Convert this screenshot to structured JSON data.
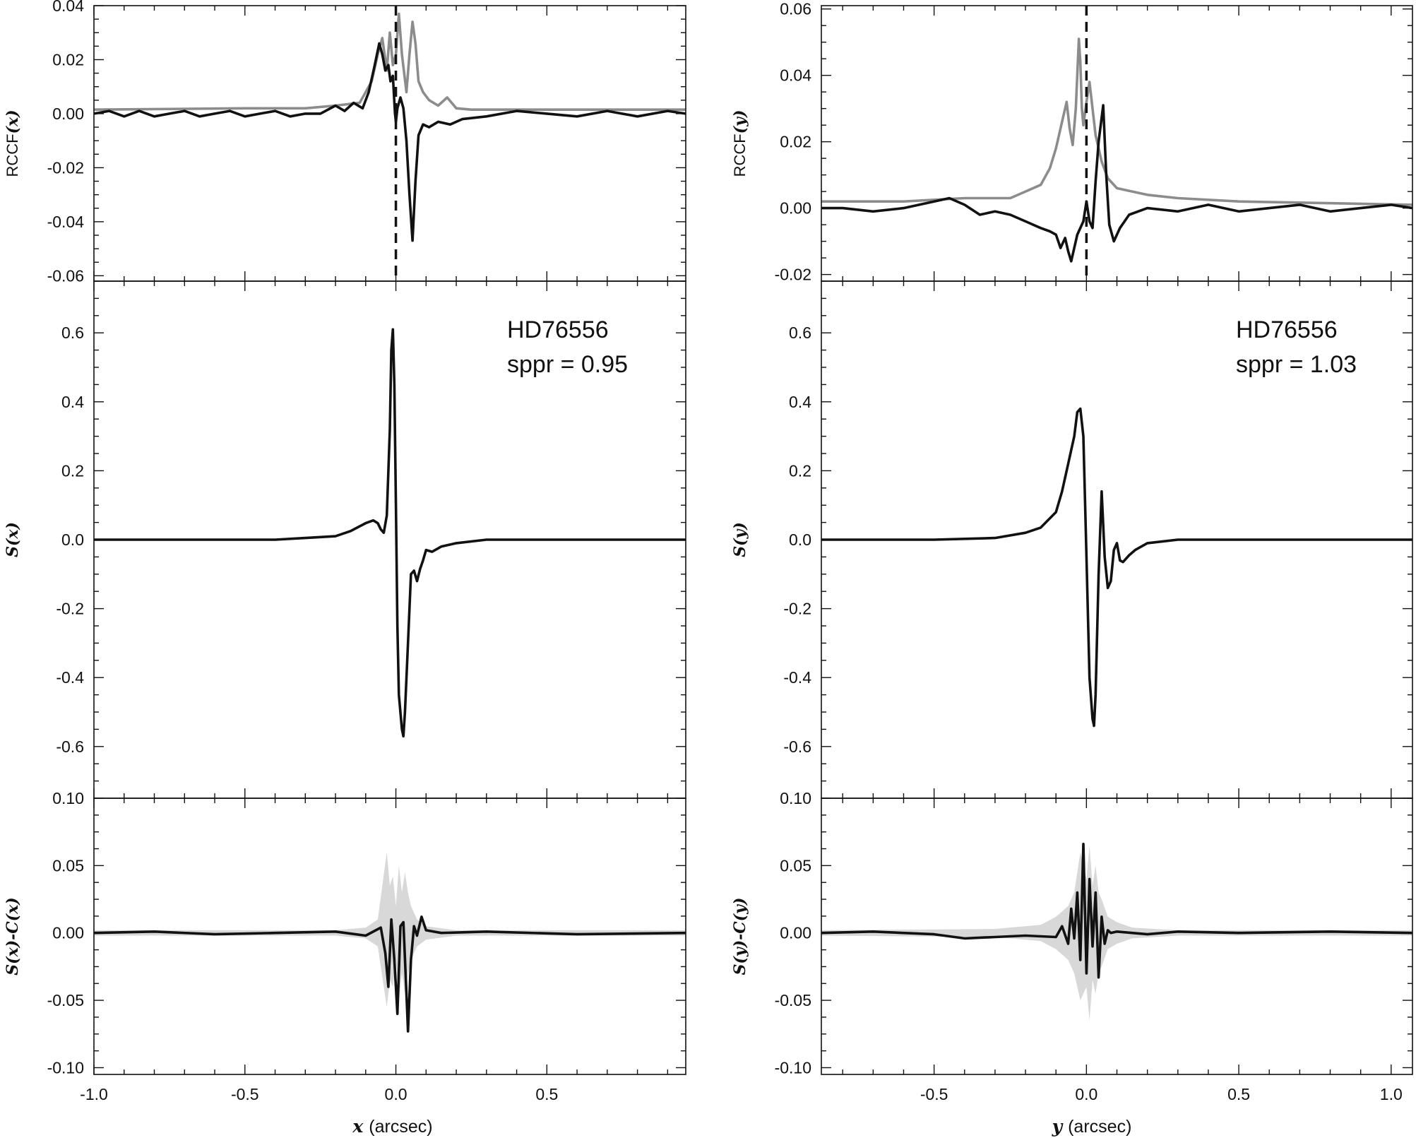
{
  "columns": [
    {
      "id": "x",
      "xrange": [
        -1.0,
        0.96
      ],
      "xticks": [
        "-1.0",
        "-0.5",
        "0.0",
        "0.5"
      ],
      "xtick_values": [
        -1.0,
        -0.5,
        0.0,
        0.5
      ],
      "xlabel_var": "x",
      "xlabel_unit": "(arcsec)",
      "annotation_name": "HD76556",
      "annotation_sppr": "sppr = 0.95"
    },
    {
      "id": "y",
      "xrange": [
        -0.87,
        1.07
      ],
      "xticks": [
        "-0.5",
        "0.0",
        "0.5",
        "1.0"
      ],
      "xtick_values": [
        -0.5,
        0.0,
        0.5,
        1.0
      ],
      "xlabel_var": "y",
      "xlabel_unit": "(arcsec)",
      "annotation_name": "HD76556",
      "annotation_sppr": "sppr = 1.03"
    }
  ],
  "chart_data": [
    {
      "type": "line",
      "panel": "top-left",
      "ylabel": "RCCF(x)",
      "ylim": [
        -0.062,
        0.04
      ],
      "yticks": [
        "-0.06",
        "-0.04",
        "-0.02",
        "0.00",
        "0.02",
        "0.04"
      ],
      "ytick_values": [
        -0.06,
        -0.04,
        -0.02,
        0.0,
        0.02,
        0.04
      ],
      "vline": 0.0,
      "series": [
        {
          "color": "#8c8c8c",
          "x": [
            -1.0,
            -0.5,
            -0.3,
            -0.2,
            -0.12,
            -0.1,
            -0.08,
            -0.06,
            -0.045,
            -0.03,
            -0.02,
            -0.01,
            0.0,
            0.01,
            0.02,
            0.035,
            0.045,
            0.055,
            0.065,
            0.075,
            0.09,
            0.11,
            0.14,
            0.17,
            0.2,
            0.25,
            0.5,
            0.96
          ],
          "y": [
            0.0015,
            0.002,
            0.002,
            0.003,
            0.004,
            0.008,
            0.012,
            0.022,
            0.028,
            0.016,
            0.03,
            0.018,
            0.022,
            0.037,
            0.022,
            0.008,
            0.022,
            0.034,
            0.026,
            0.012,
            0.008,
            0.005,
            0.003,
            0.006,
            0.002,
            0.0015,
            0.0015,
            0.0015
          ]
        },
        {
          "color": "#111111",
          "x": [
            -1.0,
            -0.95,
            -0.9,
            -0.85,
            -0.8,
            -0.75,
            -0.7,
            -0.65,
            -0.6,
            -0.55,
            -0.5,
            -0.45,
            -0.4,
            -0.35,
            -0.3,
            -0.25,
            -0.2,
            -0.17,
            -0.14,
            -0.11,
            -0.09,
            -0.07,
            -0.055,
            -0.045,
            -0.035,
            -0.025,
            -0.018,
            -0.01,
            -0.003,
            0.0,
            0.005,
            0.015,
            0.025,
            0.035,
            0.045,
            0.055,
            0.065,
            0.075,
            0.09,
            0.11,
            0.14,
            0.18,
            0.22,
            0.3,
            0.4,
            0.5,
            0.6,
            0.7,
            0.8,
            0.9,
            0.96
          ],
          "y": [
            0.0,
            0.001,
            -0.001,
            0.001,
            -0.001,
            0.0,
            0.001,
            -0.001,
            0.0,
            0.001,
            -0.001,
            0.0,
            0.001,
            -0.001,
            0.0,
            0.0,
            0.003,
            0.001,
            0.004,
            0.002,
            0.008,
            0.018,
            0.026,
            0.022,
            0.016,
            0.018,
            0.012,
            0.014,
            0.0,
            -0.003,
            0.002,
            0.006,
            0.002,
            -0.01,
            -0.03,
            -0.047,
            -0.025,
            -0.008,
            -0.004,
            -0.005,
            -0.003,
            -0.004,
            -0.002,
            -0.001,
            0.001,
            0.0,
            -0.001,
            0.001,
            -0.001,
            0.001,
            0.0
          ]
        }
      ]
    },
    {
      "type": "line",
      "panel": "middle-left",
      "ylabel": "S(x)",
      "ylim": [
        -0.75,
        0.75
      ],
      "yticks": [
        "-0.6",
        "-0.4",
        "-0.2",
        "0.0",
        "0.2",
        "0.4",
        "0.6"
      ],
      "ytick_values": [
        -0.6,
        -0.4,
        -0.2,
        0.0,
        0.2,
        0.4,
        0.6
      ],
      "series": [
        {
          "color": "#111111",
          "x": [
            -1.0,
            -0.6,
            -0.4,
            -0.3,
            -0.2,
            -0.15,
            -0.1,
            -0.075,
            -0.06,
            -0.05,
            -0.04,
            -0.03,
            -0.02,
            -0.015,
            -0.01,
            -0.005,
            0.0,
            0.005,
            0.01,
            0.02,
            0.025,
            0.03,
            0.04,
            0.05,
            0.06,
            0.07,
            0.08,
            0.09,
            0.1,
            0.12,
            0.15,
            0.2,
            0.3,
            0.5,
            0.96
          ],
          "y": [
            0.0,
            0.0,
            0.0,
            0.005,
            0.01,
            0.025,
            0.048,
            0.056,
            0.048,
            0.03,
            0.02,
            0.07,
            0.32,
            0.55,
            0.61,
            0.45,
            0.1,
            -0.25,
            -0.45,
            -0.55,
            -0.57,
            -0.5,
            -0.3,
            -0.1,
            -0.09,
            -0.12,
            -0.085,
            -0.06,
            -0.03,
            -0.035,
            -0.02,
            -0.01,
            0.0,
            0.0,
            0.0
          ]
        }
      ]
    },
    {
      "type": "area",
      "panel": "bottom-left",
      "ylabel": "S(x)-C(x)",
      "ylim": [
        -0.105,
        0.1
      ],
      "yticks": [
        "-0.10",
        "-0.05",
        "0.00",
        "0.05",
        "0.10"
      ],
      "ytick_values": [
        -0.1,
        -0.05,
        0.0,
        0.05,
        0.1
      ],
      "band": {
        "color": "#d8d8d8",
        "x": [
          -1.0,
          -0.2,
          -0.1,
          -0.06,
          -0.03,
          -0.02,
          -0.01,
          0.0,
          0.01,
          0.02,
          0.03,
          0.04,
          0.05,
          0.07,
          0.1,
          0.2,
          0.96
        ],
        "upper": [
          0.002,
          0.002,
          0.004,
          0.01,
          0.06,
          0.035,
          0.042,
          0.02,
          0.05,
          0.03,
          0.045,
          0.03,
          0.02,
          0.01,
          0.005,
          0.002,
          0.002
        ],
        "lower": [
          -0.002,
          -0.002,
          -0.004,
          -0.01,
          -0.055,
          -0.035,
          -0.04,
          -0.02,
          -0.05,
          -0.03,
          -0.045,
          -0.03,
          -0.02,
          -0.01,
          -0.005,
          -0.002,
          -0.002
        ]
      },
      "series": [
        {
          "color": "#111111",
          "x": [
            -1.0,
            -0.8,
            -0.6,
            -0.4,
            -0.2,
            -0.1,
            -0.05,
            -0.035,
            -0.025,
            -0.015,
            -0.005,
            0.005,
            0.015,
            0.025,
            0.035,
            0.04,
            0.05,
            0.06,
            0.07,
            0.085,
            0.1,
            0.15,
            0.3,
            0.6,
            0.96
          ],
          "y": [
            0.0,
            0.001,
            -0.001,
            0.0,
            0.001,
            -0.002,
            0.004,
            -0.015,
            -0.04,
            0.01,
            -0.02,
            -0.06,
            0.005,
            0.008,
            -0.045,
            -0.073,
            -0.02,
            0.005,
            -0.002,
            0.012,
            0.002,
            0.0,
            0.001,
            -0.001,
            0.0
          ]
        }
      ]
    },
    {
      "type": "line",
      "panel": "top-right",
      "ylabel": "RCCF(y)",
      "ylim": [
        -0.022,
        0.061
      ],
      "yticks": [
        "-0.02",
        "0.00",
        "0.02",
        "0.04",
        "0.06"
      ],
      "ytick_values": [
        -0.02,
        0.0,
        0.02,
        0.04,
        0.06
      ],
      "vline": 0.0,
      "series": [
        {
          "color": "#8c8c8c",
          "x": [
            -0.87,
            -0.6,
            -0.4,
            -0.25,
            -0.2,
            -0.15,
            -0.12,
            -0.1,
            -0.08,
            -0.065,
            -0.055,
            -0.045,
            -0.035,
            -0.025,
            -0.02,
            -0.015,
            -0.01,
            0.0,
            0.01,
            0.02,
            0.03,
            0.04,
            0.05,
            0.07,
            0.1,
            0.15,
            0.2,
            0.3,
            0.5,
            1.07
          ],
          "y": [
            0.002,
            0.002,
            0.003,
            0.003,
            0.005,
            0.007,
            0.012,
            0.018,
            0.026,
            0.032,
            0.024,
            0.019,
            0.03,
            0.051,
            0.044,
            0.03,
            0.025,
            0.032,
            0.038,
            0.03,
            0.022,
            0.018,
            0.014,
            0.009,
            0.006,
            0.005,
            0.004,
            0.003,
            0.002,
            0.001
          ]
        },
        {
          "color": "#111111",
          "x": [
            -0.87,
            -0.8,
            -0.7,
            -0.6,
            -0.5,
            -0.45,
            -0.4,
            -0.35,
            -0.3,
            -0.25,
            -0.2,
            -0.15,
            -0.12,
            -0.1,
            -0.085,
            -0.07,
            -0.06,
            -0.05,
            -0.04,
            -0.03,
            -0.02,
            -0.01,
            0.0,
            0.01,
            0.02,
            0.03,
            0.04,
            0.055,
            0.065,
            0.075,
            0.09,
            0.11,
            0.14,
            0.2,
            0.3,
            0.4,
            0.5,
            0.6,
            0.7,
            0.8,
            0.9,
            1.0,
            1.07
          ],
          "y": [
            0.0,
            0.0,
            -0.001,
            0.0,
            0.002,
            0.003,
            0.001,
            -0.002,
            -0.001,
            -0.002,
            -0.004,
            -0.006,
            -0.007,
            -0.008,
            -0.012,
            -0.009,
            -0.013,
            -0.016,
            -0.012,
            -0.008,
            -0.006,
            -0.004,
            0.002,
            -0.004,
            -0.006,
            0.008,
            0.02,
            0.031,
            0.01,
            -0.005,
            -0.01,
            -0.006,
            -0.002,
            0.0,
            -0.001,
            0.001,
            -0.001,
            0.0,
            0.001,
            -0.001,
            0.0,
            0.001,
            0.0
          ]
        }
      ]
    },
    {
      "type": "line",
      "panel": "middle-right",
      "ylabel": "S(y)",
      "ylim": [
        -0.75,
        0.75
      ],
      "yticks": [
        "-0.6",
        "-0.4",
        "-0.2",
        "0.0",
        "0.2",
        "0.4",
        "0.6"
      ],
      "ytick_values": [
        -0.6,
        -0.4,
        -0.2,
        0.0,
        0.2,
        0.4,
        0.6
      ],
      "series": [
        {
          "color": "#111111",
          "x": [
            -0.87,
            -0.5,
            -0.3,
            -0.2,
            -0.15,
            -0.1,
            -0.08,
            -0.06,
            -0.04,
            -0.03,
            -0.02,
            -0.01,
            0.0,
            0.01,
            0.02,
            0.025,
            0.03,
            0.04,
            0.05,
            0.06,
            0.07,
            0.08,
            0.09,
            0.1,
            0.11,
            0.12,
            0.14,
            0.16,
            0.2,
            0.3,
            0.5,
            1.07
          ],
          "y": [
            0.0,
            0.0,
            0.005,
            0.02,
            0.035,
            0.08,
            0.14,
            0.22,
            0.3,
            0.37,
            0.38,
            0.3,
            -0.05,
            -0.4,
            -0.52,
            -0.54,
            -0.45,
            -0.1,
            0.14,
            -0.05,
            -0.14,
            -0.12,
            -0.03,
            -0.01,
            -0.06,
            -0.065,
            -0.045,
            -0.03,
            -0.01,
            0.0,
            0.0,
            0.0
          ]
        }
      ]
    },
    {
      "type": "area",
      "panel": "bottom-right",
      "ylabel": "S(y)-C(y)",
      "ylim": [
        -0.105,
        0.1
      ],
      "yticks": [
        "-0.10",
        "-0.05",
        "0.00",
        "0.05",
        "0.10"
      ],
      "ytick_values": [
        -0.1,
        -0.05,
        0.0,
        0.05,
        0.1
      ],
      "band": {
        "color": "#d8d8d8",
        "x": [
          -0.87,
          -0.3,
          -0.15,
          -0.1,
          -0.06,
          -0.04,
          -0.02,
          0.0,
          0.01,
          0.02,
          0.03,
          0.04,
          0.05,
          0.07,
          0.1,
          0.15,
          0.3,
          1.07
        ],
        "upper": [
          0.002,
          0.003,
          0.006,
          0.012,
          0.02,
          0.03,
          0.06,
          0.04,
          0.065,
          0.035,
          0.05,
          0.03,
          0.025,
          0.012,
          0.008,
          0.004,
          0.002,
          0.002
        ],
        "lower": [
          -0.002,
          -0.003,
          -0.006,
          -0.012,
          -0.02,
          -0.03,
          -0.05,
          -0.04,
          -0.065,
          -0.035,
          -0.045,
          -0.03,
          -0.025,
          -0.012,
          -0.008,
          -0.004,
          -0.002,
          -0.002
        ]
      },
      "series": [
        {
          "color": "#111111",
          "x": [
            -0.87,
            -0.7,
            -0.5,
            -0.4,
            -0.3,
            -0.2,
            -0.1,
            -0.08,
            -0.06,
            -0.05,
            -0.04,
            -0.03,
            -0.02,
            -0.01,
            0.0,
            0.01,
            0.02,
            0.03,
            0.04,
            0.05,
            0.06,
            0.07,
            0.08,
            0.1,
            0.15,
            0.2,
            0.3,
            0.5,
            0.8,
            1.07
          ],
          "y": [
            0.0,
            0.001,
            -0.001,
            -0.004,
            -0.003,
            -0.002,
            -0.003,
            0.005,
            -0.008,
            0.018,
            -0.004,
            0.03,
            -0.02,
            0.066,
            -0.03,
            0.04,
            -0.01,
            0.03,
            -0.033,
            0.012,
            -0.008,
            0.002,
            0.0,
            0.001,
            0.0,
            -0.001,
            0.001,
            0.0,
            0.001,
            0.0
          ]
        }
      ]
    }
  ]
}
